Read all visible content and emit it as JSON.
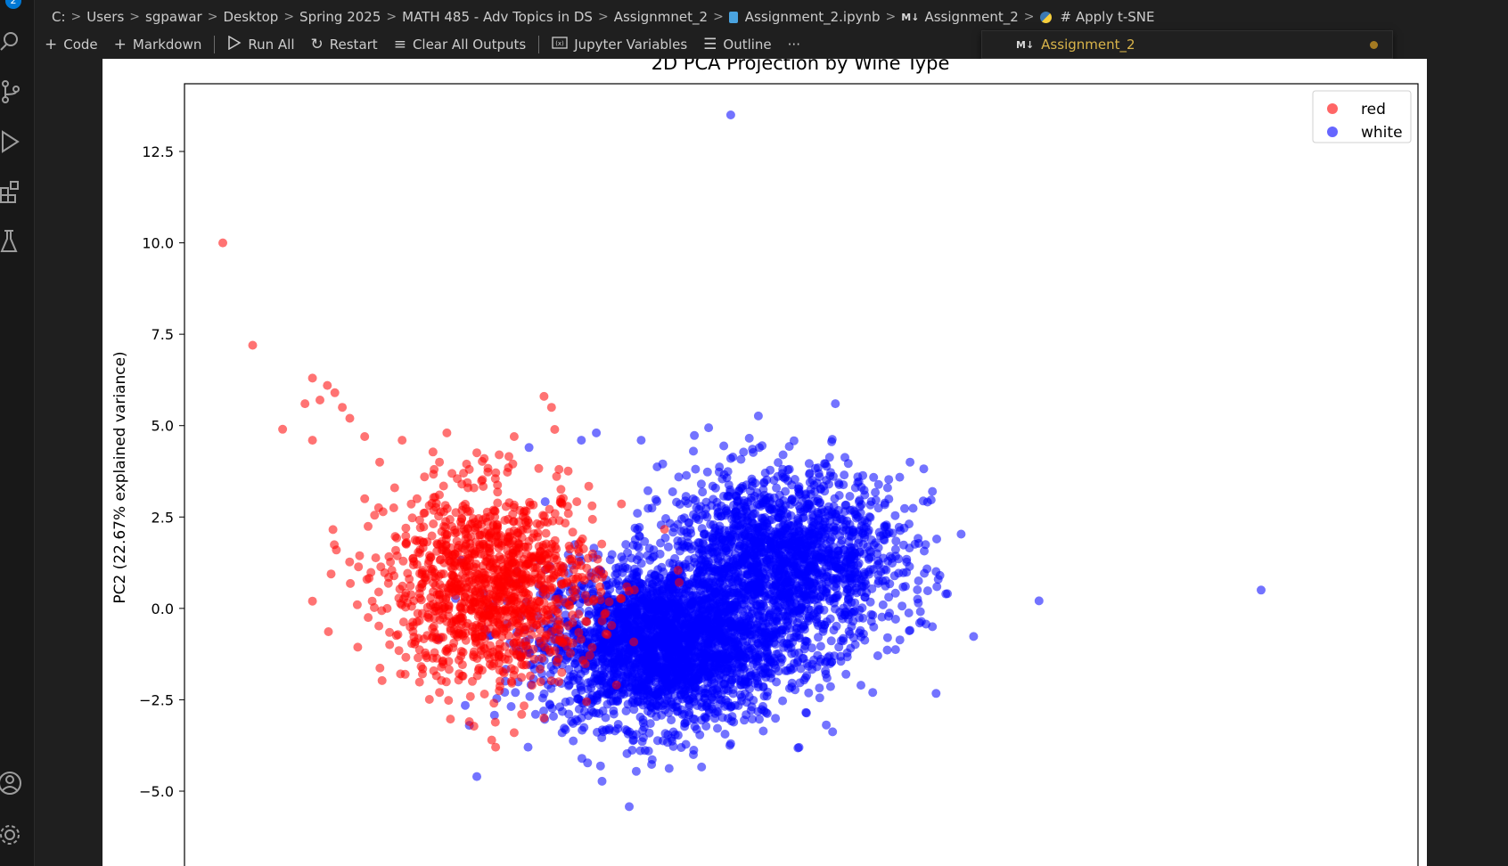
{
  "breadcrumb": {
    "items": [
      "C:",
      "Users",
      "sgpawar",
      "Desktop",
      "Spring 2025",
      "MATH 485 - Adv Topics in DS",
      "Assignmnet_2",
      "Assignment_2.ipynb",
      "Assignment_2",
      "# Apply t-SNE"
    ],
    "md_tag": "M↓"
  },
  "toolbar": {
    "code_label": "Code",
    "markdown_label": "Markdown",
    "run_all_label": "Run All",
    "restart_label": "Restart",
    "clear_outputs_label": "Clear All Outputs",
    "jupyter_vars_label": "Jupyter Variables",
    "outline_label": "Outline",
    "more_label": "···"
  },
  "outline_popup": {
    "md_tag": "M↓",
    "label": "Assignment_2"
  },
  "activity": {
    "badge": "2"
  },
  "colors": {
    "red": "#ff0000",
    "white": "#0000ff",
    "bg": "#1f1f1f"
  },
  "chart_data": {
    "type": "scatter",
    "title": "2D PCA Projection by Wine Type",
    "ylabel": "PC2 (22.67% explained variance)",
    "xlabel": "",
    "ylim": [
      -5.0,
      14.3
    ],
    "yticks": [
      12.5,
      10.0,
      7.5,
      5.0,
      2.5,
      0.0,
      -2.5,
      -5.0
    ],
    "ytick_labels": [
      "12.5",
      "10.0",
      "7.5",
      "5.0",
      "2.5",
      "0.0",
      "−2.5",
      "−5.0"
    ],
    "legend": {
      "placement": "top-right",
      "entries": [
        "red",
        "white"
      ]
    },
    "series": [
      {
        "name": "red",
        "color": "#ff0000",
        "points": [
          [
            -4.2,
            10.0
          ],
          [
            -3.8,
            7.2
          ],
          [
            -3.0,
            6.3
          ],
          [
            -2.8,
            6.1
          ],
          [
            -2.7,
            5.9
          ],
          [
            -2.6,
            5.5
          ],
          [
            -3.1,
            5.6
          ],
          [
            -2.9,
            5.7
          ],
          [
            -3.4,
            4.9
          ],
          [
            -3.0,
            4.6
          ],
          [
            -2.5,
            5.2
          ],
          [
            -2.3,
            4.7
          ],
          [
            -2.1,
            4.0
          ],
          [
            -1.8,
            4.6
          ],
          [
            -1.9,
            3.3
          ],
          [
            -2.3,
            3.0
          ],
          [
            -1.6,
            3.0
          ],
          [
            -1.5,
            3.6
          ],
          [
            -1.3,
            4.0
          ],
          [
            -1.2,
            4.8
          ],
          [
            -1.0,
            3.4
          ],
          [
            -0.9,
            3.8
          ],
          [
            -0.7,
            4.1
          ],
          [
            -0.5,
            4.2
          ],
          [
            -0.3,
            4.7
          ],
          [
            0.1,
            5.8
          ],
          [
            0.2,
            5.5
          ],
          [
            0.3,
            3.8
          ],
          [
            -3.0,
            0.2
          ],
          [
            -2.4,
            0.1
          ],
          [
            -2.2,
            0.2
          ],
          [
            -2.0,
            0.0
          ],
          [
            -1.6,
            1.2
          ],
          [
            -1.4,
            -0.8
          ],
          [
            -1.3,
            -2.3
          ],
          [
            -0.9,
            -3.1
          ],
          [
            -0.6,
            -3.6
          ],
          [
            -0.3,
            -3.4
          ],
          [
            -0.2,
            -2.9
          ],
          [
            0.1,
            -3.0
          ]
        ],
        "cluster": {
          "cx": -0.6,
          "cy": 0.6,
          "sx": 0.7,
          "sy": 1.3,
          "n": 1200
        }
      },
      {
        "name": "white",
        "color": "#0000ff",
        "points": [
          [
            2.6,
            13.5
          ],
          [
            4.0,
            5.6
          ],
          [
            0.8,
            4.8
          ],
          [
            0.6,
            4.6
          ],
          [
            -0.1,
            4.4
          ],
          [
            1.4,
            4.6
          ],
          [
            2.1,
            4.3
          ],
          [
            2.6,
            4.1
          ],
          [
            3.3,
            4.2
          ],
          [
            4.3,
            3.6
          ],
          [
            4.7,
            3.3
          ],
          [
            5.0,
            4.0
          ],
          [
            5.3,
            3.2
          ],
          [
            4.5,
            -2.3
          ],
          [
            4.7,
            -0.8
          ],
          [
            5.0,
            -0.6
          ],
          [
            5.3,
            -0.5
          ],
          [
            5.4,
            0.9
          ],
          [
            5.5,
            0.4
          ],
          [
            9.7,
            0.5
          ],
          [
            1.3,
            -3.6
          ],
          [
            1.5,
            -3.9
          ],
          [
            2.1,
            -4.0
          ],
          [
            2.6,
            -3.7
          ],
          [
            -0.8,
            -4.6
          ],
          [
            -0.9,
            -3.2
          ]
        ],
        "cluster": {
          "cx": 1.7,
          "cy": -1.0,
          "sx": 0.8,
          "sy": 1.1,
          "n": 2600
        },
        "cluster2": {
          "cx": 3.3,
          "cy": 1.3,
          "sx": 0.8,
          "sy": 1.2,
          "n": 1800
        }
      }
    ]
  }
}
